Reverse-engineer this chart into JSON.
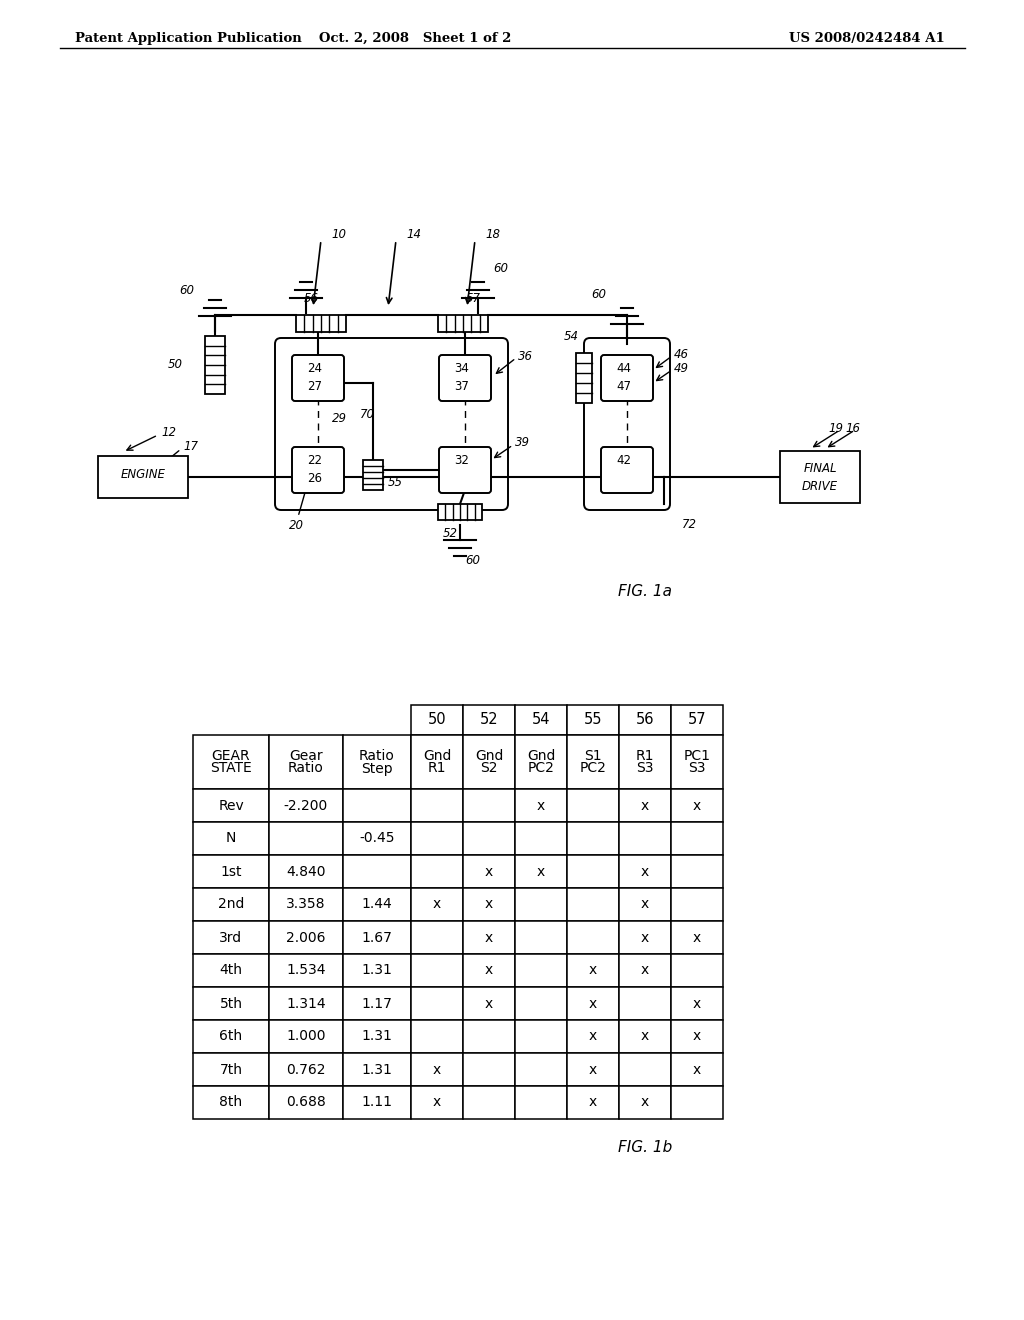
{
  "header_left": "Patent Application Publication",
  "header_mid": "Oct. 2, 2008   Sheet 1 of 2",
  "header_right": "US 2008/0242484 A1",
  "fig1a_label": "FIG. 1a",
  "fig1b_label": "FIG. 1b",
  "bg_color": "#ffffff",
  "table_header_row1": [
    "",
    "",
    "",
    "50",
    "52",
    "54",
    "55",
    "56",
    "57"
  ],
  "table_col1_row2": "GEAR\nSTATE",
  "table_col2_row2": "Gear\nRatio",
  "table_col3_row2": "Ratio\nStep",
  "table_col4_row2": "Gnd\nR1",
  "table_col5_row2": "Gnd\nS2",
  "table_col6_row2": "Gnd\nPC2",
  "table_col7_row2": "S1\nPC2",
  "table_col8_row2": "R1\nS3",
  "table_col9_row2": "PC1\nS3",
  "table_rows": [
    [
      "Rev",
      "-2.200",
      "",
      "",
      "",
      "x",
      "",
      "x",
      "x"
    ],
    [
      "N",
      "",
      "-0.45",
      "",
      "",
      "",
      "",
      "",
      ""
    ],
    [
      "1st",
      "4.840",
      "",
      "",
      "x",
      "x",
      "",
      "x",
      ""
    ],
    [
      "2nd",
      "3.358",
      "1.44",
      "x",
      "x",
      "",
      "",
      "x",
      ""
    ],
    [
      "3rd",
      "2.006",
      "1.67",
      "",
      "x",
      "",
      "",
      "x",
      "x"
    ],
    [
      "4th",
      "1.534",
      "1.31",
      "",
      "x",
      "",
      "x",
      "x",
      ""
    ],
    [
      "5th",
      "1.314",
      "1.17",
      "",
      "x",
      "",
      "x",
      "",
      "x"
    ],
    [
      "6th",
      "1.000",
      "1.31",
      "",
      "",
      "",
      "x",
      "x",
      "x"
    ],
    [
      "7th",
      "0.762",
      "1.31",
      "x",
      "",
      "",
      "x",
      "",
      "x"
    ],
    [
      "8th",
      "0.688",
      "1.11",
      "x",
      "",
      "",
      "x",
      "x",
      ""
    ]
  ]
}
